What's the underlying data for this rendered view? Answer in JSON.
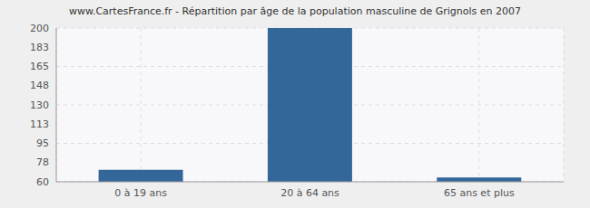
{
  "chart_data": {
    "type": "bar",
    "title": "www.CartesFrance.fr - Répartition par âge de la population masculine de Grignols en 2007",
    "categories": [
      "0 à 19 ans",
      "20 à 64 ans",
      "65 ans et plus"
    ],
    "values": [
      71,
      200,
      64
    ],
    "color": "#336699",
    "ylim": [
      60,
      200
    ],
    "yticks": [
      60,
      78,
      95,
      113,
      130,
      148,
      165,
      183,
      200
    ],
    "grid": true
  }
}
